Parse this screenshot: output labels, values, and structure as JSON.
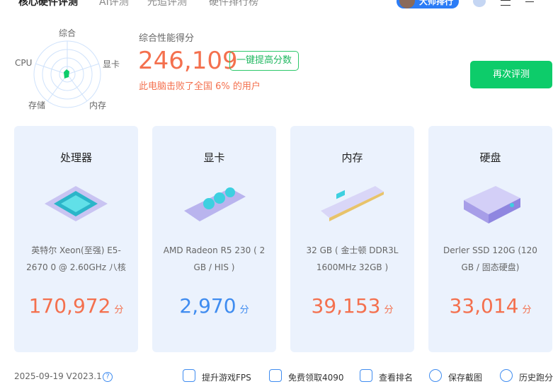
{
  "nav": {
    "tabs": [
      "核心硬件评测",
      "AI评测",
      "光追评测",
      "硬件排行榜"
    ],
    "master_button": "大师排行"
  },
  "radar": {
    "labels": {
      "top": "综合",
      "right": "显卡",
      "bottom_right": "内存",
      "bottom_left": "存储",
      "left": "CPU"
    },
    "color": "#0dcc6a"
  },
  "summary": {
    "title": "综合性能得分",
    "score": "246,109",
    "boost_button": "一键提高分数",
    "beat_text": "此电脑击败了全国 6% 的用户",
    "retest_button": "再次评测"
  },
  "cards": [
    {
      "title": "处理器",
      "desc": "英特尔 Xeon(至强) E5-2670 0 @ 2.60GHz 八核",
      "score": "170,972",
      "unit": "分",
      "color": "#f4704e"
    },
    {
      "title": "显卡",
      "desc": "AMD Radeon R5 230 ( 2 GB / HIS )",
      "score": "2,970",
      "unit": "分",
      "color": "#3f8cf0"
    },
    {
      "title": "内存",
      "desc": "32 GB ( 金士顿 DDR3L 1600MHz 32GB )",
      "score": "39,153",
      "unit": "分",
      "color": "#f4704e"
    },
    {
      "title": "硬盘",
      "desc": "Derler SSD 120G (120 GB / 固态硬盘)",
      "score": "33,014",
      "unit": "分",
      "color": "#f4704e"
    }
  ],
  "footer": {
    "version": "2025-09-19 V2023.1",
    "help": "?",
    "items": [
      "提升游戏FPS",
      "免费领取4090",
      "查看排名",
      "保存截图",
      "历史跑分"
    ]
  }
}
